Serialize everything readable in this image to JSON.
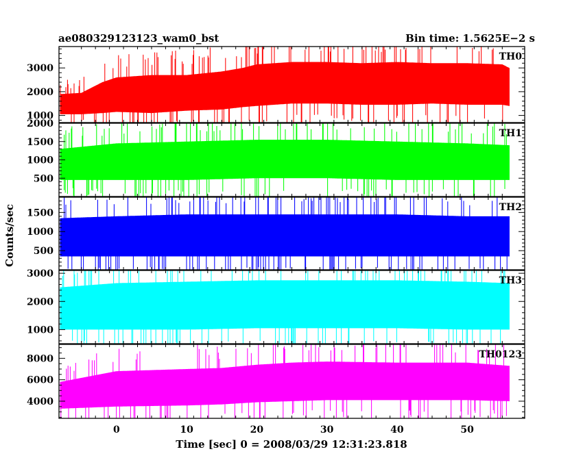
{
  "chart_data": {
    "type": "line",
    "title": "ae080329123123_wam0_bst",
    "bin_time": "Bin time: 1.5625E−2 s",
    "xlabel": "Time [sec] 0 = 2008/03/29 12:31:23.818",
    "ylabel": "Counts/sec",
    "xlim": [
      -8.2,
      58.2
    ],
    "x_data_range": [
      -8.0,
      56.0
    ],
    "x_ticks": [
      0,
      10,
      20,
      30,
      40,
      50
    ],
    "x_tick_labels": [
      "0",
      "10",
      "20",
      "30",
      "40",
      "50"
    ],
    "panels": [
      {
        "name": "TH0",
        "color": "#ff0000",
        "ylim": [
          700,
          3900
        ],
        "y_ticks": [
          1000,
          2000,
          3000
        ],
        "y_tick_labels": [
          "1000",
          "2000",
          "3000"
        ],
        "envelope_x": [
          -8,
          -5,
          -2,
          0,
          5,
          10,
          15,
          18,
          20,
          25,
          30,
          35,
          40,
          45,
          50,
          55,
          56
        ],
        "envelope_low": [
          1050,
          1050,
          1100,
          1150,
          1100,
          1200,
          1250,
          1350,
          1400,
          1500,
          1500,
          1450,
          1450,
          1500,
          1450,
          1450,
          1400
        ],
        "envelope_high": [
          1900,
          1950,
          2400,
          2600,
          2700,
          2700,
          2850,
          3000,
          3150,
          3250,
          3250,
          3200,
          3250,
          3200,
          3200,
          3150,
          3000
        ]
      },
      {
        "name": "TH1",
        "color": "#00ff00",
        "ylim": [
          0,
          2000
        ],
        "y_ticks": [
          500,
          1000,
          1500,
          2000
        ],
        "y_tick_labels": [
          "500",
          "1000",
          "1500",
          "2000"
        ],
        "envelope_x": [
          -8,
          0,
          10,
          20,
          30,
          40,
          50,
          56
        ],
        "envelope_low": [
          450,
          450,
          450,
          500,
          500,
          450,
          450,
          450
        ],
        "envelope_high": [
          1300,
          1450,
          1500,
          1550,
          1550,
          1500,
          1450,
          1400
        ]
      },
      {
        "name": "TH2",
        "color": "#0000ff",
        "ylim": [
          0,
          1900
        ],
        "y_ticks": [
          500,
          1000,
          1500
        ],
        "y_tick_labels": [
          "500",
          "1000",
          "1500"
        ],
        "envelope_x": [
          -8,
          0,
          10,
          20,
          30,
          40,
          50,
          56
        ],
        "envelope_low": [
          350,
          350,
          350,
          350,
          350,
          350,
          350,
          350
        ],
        "envelope_high": [
          1350,
          1400,
          1450,
          1450,
          1450,
          1450,
          1400,
          1400
        ]
      },
      {
        "name": "TH3",
        "color": "#00ffff",
        "ylim": [
          500,
          3100
        ],
        "y_ticks": [
          1000,
          2000,
          3000
        ],
        "y_tick_labels": [
          "1000",
          "2000",
          "3000"
        ],
        "envelope_x": [
          -8,
          0,
          10,
          20,
          30,
          40,
          50,
          56
        ],
        "envelope_low": [
          1000,
          1000,
          1000,
          1050,
          1050,
          1050,
          1000,
          1000
        ],
        "envelope_high": [
          2500,
          2650,
          2700,
          2750,
          2750,
          2750,
          2700,
          2650
        ]
      },
      {
        "name": "TH0123",
        "color": "#ff00ff",
        "ylim": [
          2400,
          9300
        ],
        "y_ticks": [
          4000,
          6000,
          8000
        ],
        "y_tick_labels": [
          "4000",
          "6000",
          "8000"
        ],
        "envelope_x": [
          -8,
          0,
          10,
          15,
          20,
          25,
          30,
          40,
          50,
          56
        ],
        "envelope_low": [
          3300,
          3500,
          3600,
          3700,
          3900,
          4000,
          4100,
          4100,
          4100,
          4000
        ],
        "envelope_high": [
          5800,
          6800,
          7000,
          7100,
          7400,
          7600,
          7700,
          7600,
          7600,
          7300
        ]
      }
    ],
    "grid": false,
    "legend": "none"
  }
}
